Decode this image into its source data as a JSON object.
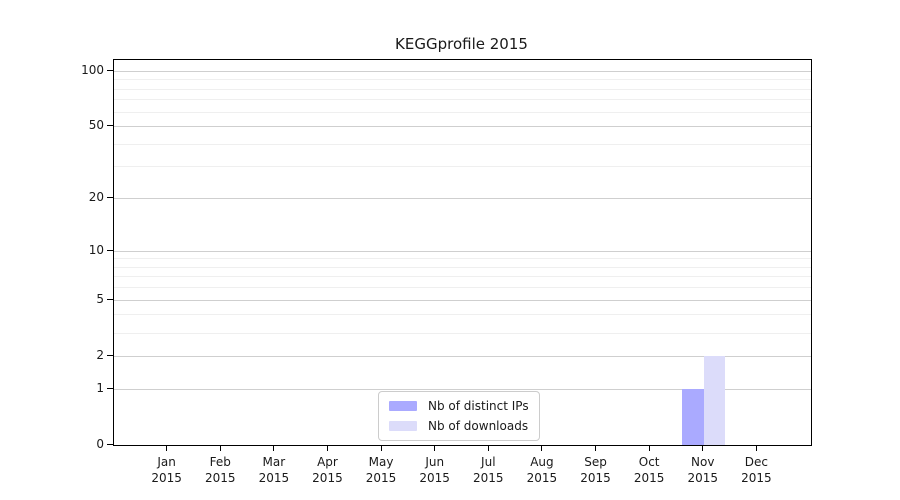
{
  "chart_data": {
    "type": "bar",
    "title": "KEGGprofile 2015",
    "categories": [
      "Jan",
      "Feb",
      "Mar",
      "Apr",
      "May",
      "Jun",
      "Jul",
      "Aug",
      "Sep",
      "Oct",
      "Nov",
      "Dec"
    ],
    "year": "2015",
    "series": [
      {
        "name": "Nb of distinct IPs",
        "color": "#aaaaff",
        "values": [
          0,
          0,
          0,
          0,
          0,
          0,
          0,
          0,
          0,
          0,
          1,
          0
        ]
      },
      {
        "name": "Nb of downloads",
        "color": "#dcdcfa",
        "values": [
          0,
          0,
          0,
          0,
          0,
          0,
          0,
          0,
          0,
          0,
          2,
          0
        ]
      }
    ],
    "y_axis": {
      "scale": "log1p",
      "ylim": [
        0,
        100
      ],
      "tick_values": [
        0,
        1,
        2,
        5,
        10,
        20,
        50,
        100
      ],
      "minor_grid_values": [
        3,
        4,
        6,
        7,
        8,
        9,
        30,
        40,
        60,
        70,
        80,
        90
      ]
    },
    "xlabel": "",
    "ylabel": "",
    "grid": true,
    "legend": {
      "position": "inside-bottom-center",
      "entries": [
        "Nb of distinct IPs",
        "Nb of downloads"
      ]
    }
  },
  "colors": {
    "bar_distinct_ips": "#aaaaff",
    "bar_downloads": "#dcdcfa",
    "major_grid": "#cfcfcf",
    "minor_grid": "#efefef",
    "axis_line": "#000000",
    "text": "#1a1a1a",
    "legend_border": "#cccccc",
    "background": "#ffffff"
  }
}
